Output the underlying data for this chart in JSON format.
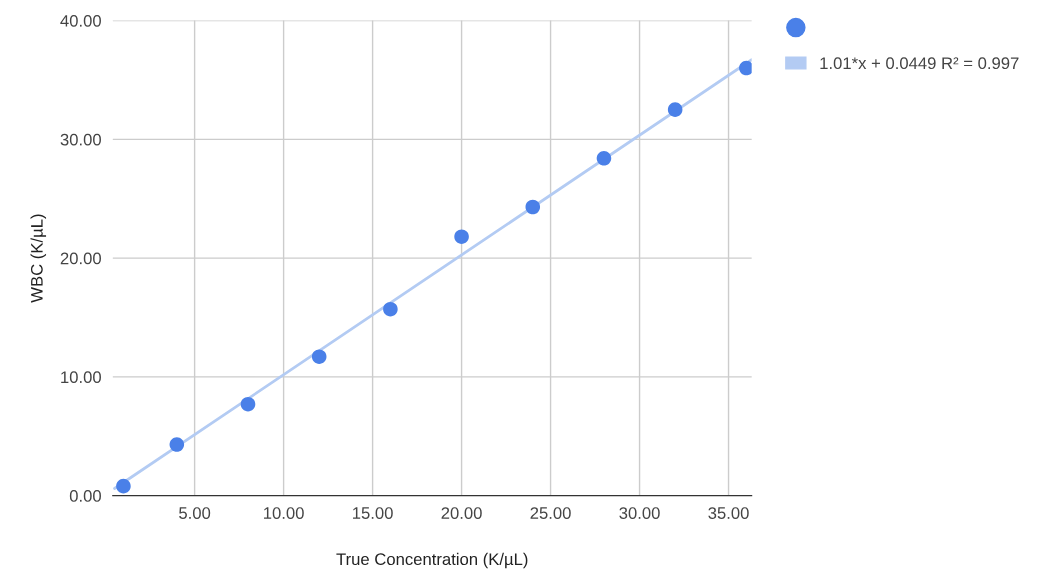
{
  "chart_data": {
    "type": "scatter",
    "xlabel": "True Concentration (K/µL)",
    "ylabel": "WBC (K/µL)",
    "series": [
      {
        "marker": "circle",
        "color": "#4a80e8",
        "x": [
          1,
          4,
          8,
          12,
          16,
          20,
          24,
          28,
          32,
          36
        ],
        "values": [
          0.8,
          4.3,
          7.7,
          11.7,
          15.7,
          21.8,
          24.3,
          28.4,
          32.5,
          36.0
        ]
      },
      {
        "type": "line",
        "name": "1.01*x + 0.0449 R² = 0.997",
        "color": "#b3cbf3",
        "x": [
          0.5,
          36.3
        ],
        "values": [
          0.6,
          36.7
        ]
      }
    ],
    "xlim": [
      0.4,
      36.3
    ],
    "ylim": [
      0,
      40
    ],
    "xticks": [
      {
        "value": 5,
        "label": "5.00"
      },
      {
        "value": 10,
        "label": "10.00"
      },
      {
        "value": 15,
        "label": "15.00"
      },
      {
        "value": 20,
        "label": "20.00"
      },
      {
        "value": 25,
        "label": "25.00"
      },
      {
        "value": 30,
        "label": "30.00"
      },
      {
        "value": 35,
        "label": "35.00"
      }
    ],
    "yticks": [
      {
        "value": 0,
        "label": "0.00"
      },
      {
        "value": 10,
        "label": "10.00"
      },
      {
        "value": 20,
        "label": "20.00"
      },
      {
        "value": 30,
        "label": "30.00"
      },
      {
        "value": 40,
        "label": "40.00"
      }
    ],
    "grid": true,
    "legend": "right"
  }
}
